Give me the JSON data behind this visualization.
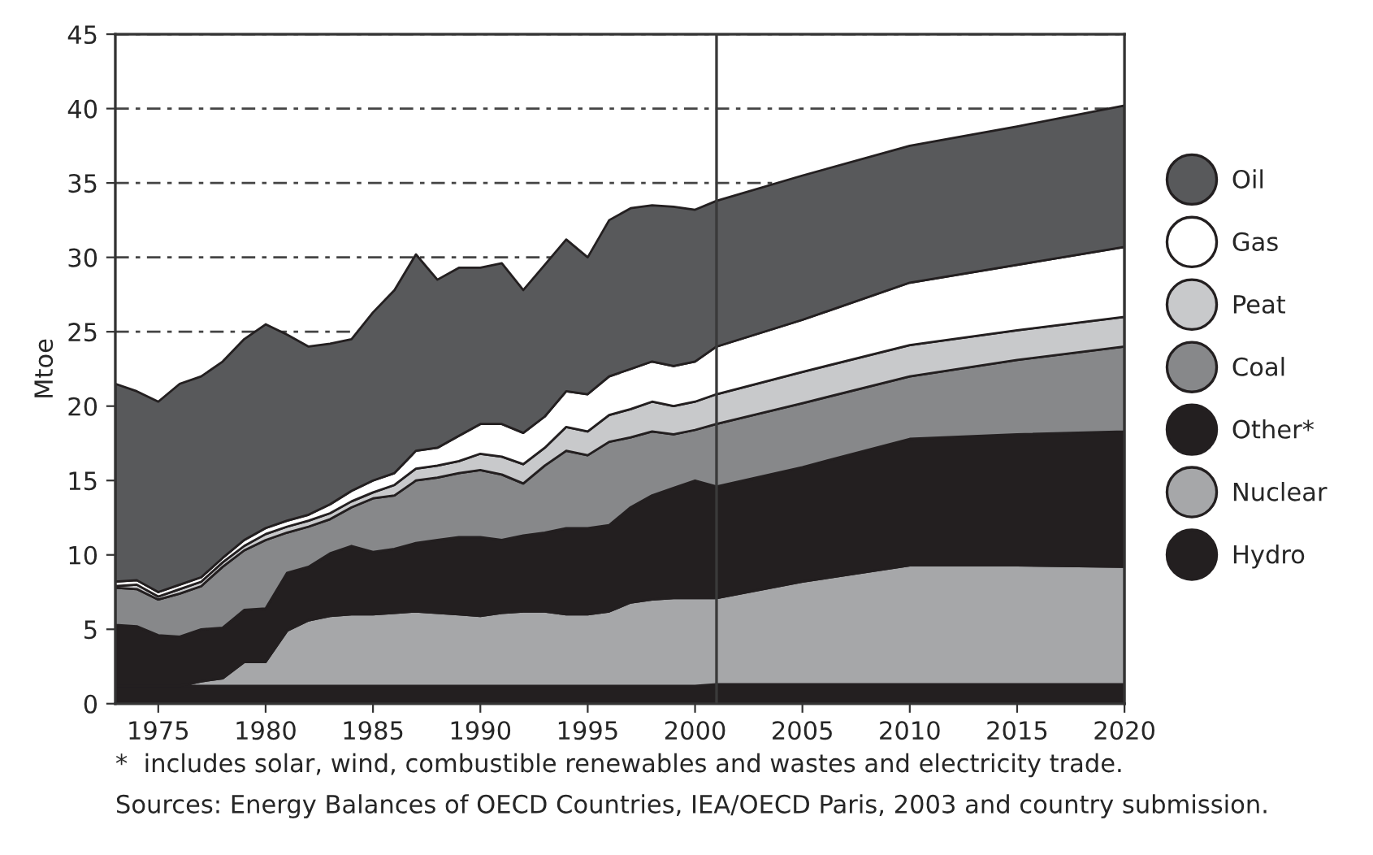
{
  "chart_data": {
    "type": "area",
    "stacked": true,
    "ylabel": "Mtoe",
    "x": [
      1973,
      1974,
      1975,
      1976,
      1977,
      1978,
      1979,
      1980,
      1981,
      1982,
      1983,
      1984,
      1985,
      1986,
      1987,
      1988,
      1989,
      1990,
      1991,
      1992,
      1993,
      1994,
      1995,
      1996,
      1997,
      1998,
      1999,
      2000,
      2001,
      2005,
      2010,
      2015,
      2020
    ],
    "series": [
      {
        "name": "Hydro",
        "color": "#231f20",
        "values": [
          1.2,
          1.2,
          1.2,
          1.2,
          1.2,
          1.2,
          1.2,
          1.2,
          1.2,
          1.2,
          1.2,
          1.2,
          1.2,
          1.2,
          1.2,
          1.2,
          1.2,
          1.2,
          1.2,
          1.2,
          1.2,
          1.2,
          1.2,
          1.2,
          1.2,
          1.2,
          1.2,
          1.2,
          1.3,
          1.3,
          1.3,
          1.3,
          1.3
        ]
      },
      {
        "name": "Nuclear",
        "color": "#a6a7a9",
        "values": [
          0,
          0,
          0,
          0,
          0.3,
          0.5,
          1.6,
          1.6,
          3.7,
          4.4,
          4.7,
          4.8,
          4.8,
          4.9,
          5.0,
          4.9,
          4.8,
          4.7,
          4.9,
          5.0,
          5.0,
          4.8,
          4.8,
          5.0,
          5.6,
          5.8,
          5.9,
          5.9,
          5.8,
          6.9,
          8.0,
          8.0,
          7.9
        ]
      },
      {
        "name": "Other*",
        "color": "#231f20",
        "values": [
          4.1,
          4.0,
          3.4,
          3.3,
          3.5,
          3.4,
          3.5,
          3.6,
          3.9,
          3.6,
          4.2,
          4.6,
          4.2,
          4.3,
          4.6,
          4.9,
          5.2,
          5.3,
          4.9,
          5.1,
          5.3,
          5.8,
          5.8,
          5.8,
          6.4,
          7.0,
          7.4,
          7.9,
          7.5,
          7.7,
          8.5,
          8.8,
          9.1
        ]
      },
      {
        "name": "Coal",
        "color": "#87888a",
        "values": [
          2.5,
          2.5,
          2.4,
          2.9,
          2.9,
          4.1,
          4.0,
          4.6,
          2.7,
          2.7,
          2.3,
          2.6,
          3.6,
          3.6,
          4.2,
          4.2,
          4.3,
          4.5,
          4.4,
          3.5,
          4.5,
          5.2,
          4.9,
          5.6,
          4.7,
          4.3,
          3.6,
          3.4,
          4.2,
          4.3,
          4.2,
          5.0,
          5.7
        ]
      },
      {
        "name": "Peat",
        "color": "#c8c9cb",
        "values": [
          0.1,
          0.3,
          0.2,
          0.3,
          0.3,
          0.3,
          0.3,
          0.4,
          0.4,
          0.4,
          0.4,
          0.4,
          0.4,
          0.7,
          0.8,
          0.8,
          0.8,
          1.1,
          1.2,
          1.3,
          1.2,
          1.6,
          1.6,
          1.8,
          1.9,
          2.0,
          1.9,
          1.9,
          2.0,
          2.1,
          2.1,
          2.0,
          2.0
        ]
      },
      {
        "name": "Gas",
        "color": "#ffffff",
        "values": [
          0.3,
          0.3,
          0.3,
          0.3,
          0.3,
          0.3,
          0.4,
          0.4,
          0.4,
          0.4,
          0.6,
          0.7,
          0.8,
          0.8,
          1.2,
          1.2,
          1.7,
          2.0,
          2.2,
          2.1,
          2.1,
          2.4,
          2.5,
          2.6,
          2.7,
          2.7,
          2.7,
          2.7,
          3.2,
          3.5,
          4.2,
          4.4,
          4.7
        ]
      },
      {
        "name": "Oil",
        "color": "#58595b",
        "values": [
          13.3,
          12.7,
          12.8,
          13.5,
          13.5,
          13.2,
          13.5,
          13.7,
          12.5,
          11.3,
          10.8,
          10.2,
          11.3,
          12.3,
          13.2,
          11.3,
          11.3,
          10.5,
          10.8,
          9.6,
          10.2,
          10.2,
          9.2,
          10.5,
          10.8,
          10.5,
          10.7,
          10.2,
          9.8,
          9.7,
          9.2,
          9.3,
          9.5
        ]
      }
    ],
    "xlim": [
      1973,
      2020
    ],
    "xticks": [
      1975,
      1980,
      1985,
      1990,
      1995,
      2000,
      2005,
      2010,
      2015,
      2020
    ],
    "ylim": [
      0,
      45
    ],
    "yticks": [
      0,
      5,
      10,
      15,
      20,
      25,
      30,
      35,
      40,
      45
    ],
    "grid": "y",
    "legend": "right",
    "ref_lines": [
      {
        "axis": "x",
        "value": 2001,
        "color": "#3a3a3a"
      }
    ],
    "annotations": [
      "*  includes solar, wind, combustible renewables and wastes and electricity trade.",
      "Sources: Energy Balances of OECD Countries, IEA/OECD Paris, 2003 and country submission."
    ]
  }
}
